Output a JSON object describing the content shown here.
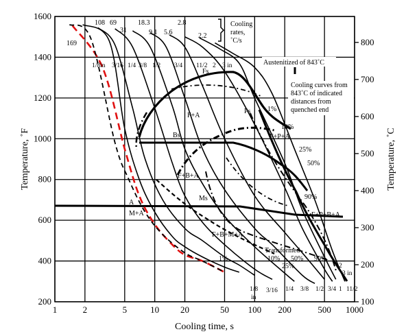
{
  "chart_data": {
    "type": "line",
    "title": "",
    "xlabel": "Cooling time, s",
    "ylabel_left": "Temperature, ˚F",
    "ylabel_right": "Temperature, ˚C",
    "x_scale": "log",
    "xlim": [
      1,
      1000
    ],
    "ylim_F": [
      200,
      1600
    ],
    "ylim_C": [
      100,
      870
    ],
    "grid": true,
    "x_ticks": [
      1,
      2,
      5,
      10,
      20,
      50,
      100,
      200,
      500,
      1000
    ],
    "x_tick_labels": [
      "1",
      "2",
      "5",
      "10",
      "20",
      "50",
      "100",
      "200",
      "500",
      "1000"
    ],
    "yF_ticks": [
      200,
      400,
      600,
      800,
      1000,
      1200,
      1400,
      1600
    ],
    "yF_tick_labels": [
      "200",
      "400",
      "600",
      "800",
      "1000",
      "1200",
      "1400",
      "1600"
    ],
    "yC_ticks": [
      100,
      200,
      300,
      400,
      500,
      600,
      700,
      800
    ],
    "yC_tick_labels": [
      "100",
      "200",
      "300",
      "400",
      "500",
      "600",
      "700",
      "800"
    ],
    "cooling_rate_labels": [
      "169",
      "108",
      "69",
      "31",
      "18.3",
      "9.1",
      "5.6",
      "2.8",
      "2.2"
    ],
    "cooling_rates_note": "Cooling rates, ˚C/s",
    "cooling_rates_note_lines": [
      "Cooling",
      "rates,",
      "˚C/s"
    ],
    "austenitized_label": "Austenitized of 843˚C",
    "cooling_curves_note": "Cooling curves from 843˚C of indicated distances from quenched end",
    "cooling_curves_note_lines": [
      "Cooling curves from",
      "843˚C of  indicated",
      "distances from",
      "quenched end"
    ],
    "distance_labels_top": [
      "1/8in",
      "3/16",
      "1/4",
      "3/8",
      "1/2",
      "3/4",
      "11/2",
      "2",
      "3 in"
    ],
    "distance_labels_bottom": [
      "1/8",
      "in",
      "3/16",
      "1/4",
      "3/8",
      "1/2",
      "3/4",
      "1",
      "11/2",
      "2",
      "3 in"
    ],
    "phase_labels": [
      "Fs",
      "F+A",
      "Ps",
      "1%",
      "10%",
      "F+P+A",
      "25%",
      "50%",
      "Bs",
      "F+B+A",
      "90%",
      "A",
      "M+A",
      "Ms",
      "F+P+B+A",
      "F+B+M+A",
      "1%"
    ],
    "transformed_label": "Transformed",
    "transformed_percent_labels": [
      "10%",
      "50%",
      "90%",
      "25%"
    ],
    "series": [
      {
        "x": [
          1.5,
          3,
          5,
          7,
          10,
          15,
          20,
          30,
          50
        ],
        "y": [
          1555,
          1350,
          950,
          720,
          580,
          480,
          430,
          400,
          345
        ]
      },
      {
        "x": [
          1.4,
          2.3,
          4,
          5.5,
          8,
          12,
          20,
          30,
          50
        ],
        "y": [
          1560,
          1490,
          980,
          800,
          640,
          530,
          440,
          400,
          345
        ]
      },
      {
        "x": [
          1.9,
          3.5,
          5,
          7,
          10,
          15,
          20,
          30,
          50,
          70
        ],
        "y": [
          1560,
          1480,
          1050,
          800,
          640,
          520,
          470,
          420,
          370,
          345
        ]
      },
      {
        "x": [
          2.7,
          4,
          6,
          8,
          12,
          20,
          30,
          50,
          70,
          100
        ],
        "y": [
          1545,
          1460,
          1150,
          900,
          700,
          560,
          500,
          420,
          380,
          330
        ]
      },
      {
        "x": [
          4,
          6,
          10,
          15,
          20,
          30,
          50,
          100,
          150
        ],
        "y": [
          1540,
          1450,
          1150,
          880,
          720,
          590,
          480,
          360,
          310
        ]
      },
      {
        "x": [
          6,
          9,
          15,
          20,
          30,
          50,
          100,
          200,
          250
        ],
        "y": [
          1530,
          1450,
          1160,
          950,
          780,
          620,
          470,
          340,
          300
        ]
      },
      {
        "x": [
          9,
          13,
          20,
          30,
          50,
          100,
          150,
          300,
          400
        ],
        "y": [
          1520,
          1450,
          1200,
          950,
          750,
          560,
          480,
          330,
          290
        ]
      },
      {
        "x": [
          14,
          20,
          30,
          50,
          100,
          200,
          300,
          500
        ],
        "y": [
          1510,
          1450,
          1260,
          1000,
          720,
          540,
          440,
          310
        ]
      },
      {
        "x": [
          20,
          30,
          50,
          100,
          200,
          300,
          500,
          600
        ],
        "y": [
          1500,
          1450,
          1330,
          1070,
          760,
          560,
          360,
          300
        ]
      },
      {
        "x": [
          28,
          45,
          70,
          100,
          200,
          300,
          500,
          650
        ],
        "y": [
          1495,
          1440,
          1370,
          1200,
          880,
          650,
          420,
          310
        ]
      },
      {
        "x": [
          40,
          60,
          100,
          150,
          250,
          400,
          600,
          800
        ],
        "y": [
          1470,
          1420,
          1350,
          1220,
          950,
          700,
          450,
          300
        ]
      }
    ]
  }
}
